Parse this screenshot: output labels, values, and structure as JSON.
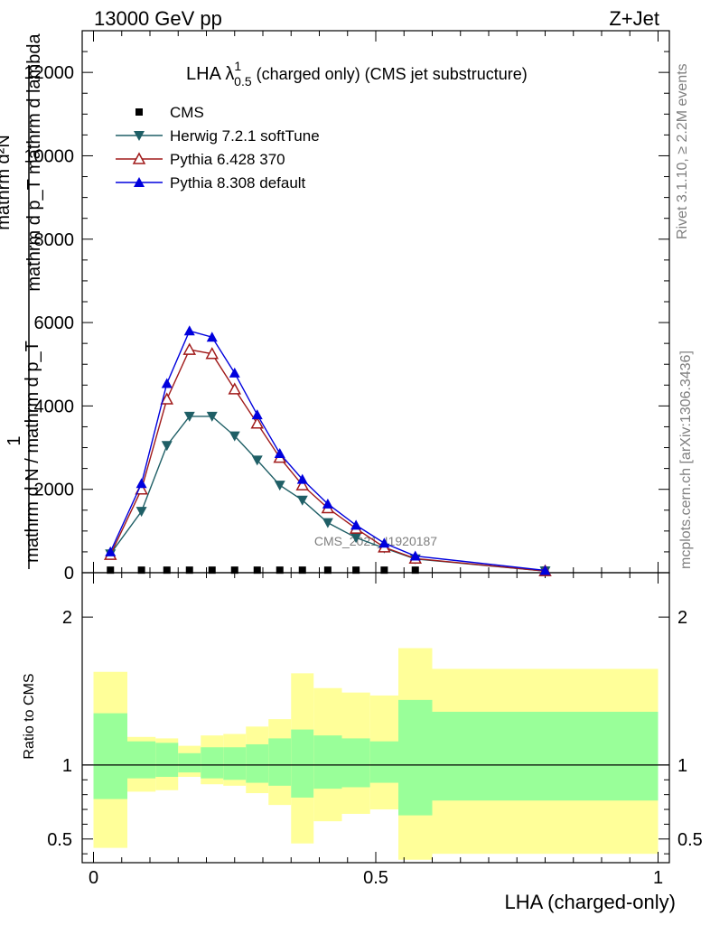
{
  "header": {
    "left": "13000 GeV pp",
    "right": "Z+Jet"
  },
  "side_labels": {
    "rivet": "Rivet 3.1.10, ≥ 2.2M events",
    "mcplots": "mcplots.cern.ch [arXiv:1306.3436]"
  },
  "main_plot": {
    "title_main": "LHA λ",
    "title_sup": "1",
    "title_sub": "0.5",
    "title_rest": " (charged only) (CMS jet substructure)",
    "ylabel_top": "mathrm d²N",
    "ylabel_bottom": "mathrm d p_T mathrm d lambda",
    "ylabel_pre_top": "1",
    "ylabel_pre_bottom": "mathrm d N / mathrm d p_T",
    "watermark": "CMS_2021_I1920187"
  },
  "ratio_plot": {
    "ylabel": "Ratio to CMS",
    "xlabel": "LHA (charged-only)"
  },
  "chart_data": {
    "type": "line",
    "x_bins": [
      0.0,
      0.06,
      0.11,
      0.15,
      0.19,
      0.23,
      0.27,
      0.31,
      0.35,
      0.39,
      0.44,
      0.49,
      0.54,
      0.6,
      1.0
    ],
    "x": [
      0.03,
      0.085,
      0.13,
      0.17,
      0.21,
      0.25,
      0.29,
      0.33,
      0.37,
      0.415,
      0.465,
      0.515,
      0.57,
      0.8
    ],
    "xlim": [
      -0.02,
      1.02
    ],
    "ylim": [
      0,
      13000
    ],
    "yticks": [
      0,
      2000,
      4000,
      6000,
      8000,
      10000,
      12000
    ],
    "yticklabels": [
      "0",
      "2000",
      "4000",
      "6000",
      "8000",
      "10000",
      "12000"
    ],
    "xticks": [
      0,
      0.5,
      1
    ],
    "xticklabels": [
      "0",
      "0.5",
      "1"
    ],
    "grid": false,
    "legend_position": "top-left",
    "series": [
      {
        "name": "CMS",
        "marker": "square",
        "color": "#000000",
        "values": [
          40,
          40,
          40,
          40,
          40,
          40,
          40,
          40,
          40,
          40,
          40,
          40,
          40,
          40
        ]
      },
      {
        "name": "Herwig 7.2.1 softTune",
        "marker": "triangle-down",
        "color": "#1f5f66",
        "values": [
          450,
          1470,
          3050,
          3750,
          3750,
          3280,
          2700,
          2100,
          1740,
          1200,
          840,
          590,
          330,
          40
        ]
      },
      {
        "name": "Pythia 6.428 370",
        "marker": "triangle-open",
        "color": "#a01a1a",
        "values": [
          430,
          2000,
          4160,
          5350,
          5250,
          4400,
          3580,
          2760,
          2100,
          1550,
          1060,
          610,
          340,
          40
        ]
      },
      {
        "name": "Pythia 8.308 default",
        "marker": "triangle-up",
        "color": "#0000dd",
        "values": [
          500,
          2140,
          4540,
          5800,
          5650,
          4790,
          3790,
          2860,
          2240,
          1650,
          1140,
          710,
          400,
          55
        ]
      }
    ],
    "ratio": {
      "ylim": [
        0.34,
        2.3
      ],
      "yticks": [
        0.5,
        1,
        2
      ],
      "yticklabels": [
        "0.5",
        "1",
        "2"
      ],
      "reference_line": 1,
      "band_inner_color": "#99ff99",
      "band_outer_color": "#ffff99",
      "band_inner": [
        [
          0.77,
          1.35
        ],
        [
          0.91,
          1.16
        ],
        [
          0.92,
          1.15
        ],
        [
          0.95,
          1.08
        ],
        [
          0.91,
          1.12
        ],
        [
          0.9,
          1.12
        ],
        [
          0.88,
          1.14
        ],
        [
          0.86,
          1.18
        ],
        [
          0.78,
          1.24
        ],
        [
          0.84,
          1.2
        ],
        [
          0.85,
          1.18
        ],
        [
          0.88,
          1.16
        ],
        [
          0.66,
          1.44
        ],
        [
          0.76,
          1.36
        ]
      ],
      "band_outer": [
        [
          0.44,
          1.63
        ],
        [
          0.82,
          1.19
        ],
        [
          0.83,
          1.18
        ],
        [
          0.92,
          1.13
        ],
        [
          0.87,
          1.2
        ],
        [
          0.86,
          1.21
        ],
        [
          0.81,
          1.26
        ],
        [
          0.73,
          1.31
        ],
        [
          0.47,
          1.62
        ],
        [
          0.62,
          1.52
        ],
        [
          0.67,
          1.49
        ],
        [
          0.7,
          1.47
        ],
        [
          0.36,
          1.79
        ],
        [
          0.4,
          1.65
        ]
      ]
    }
  }
}
